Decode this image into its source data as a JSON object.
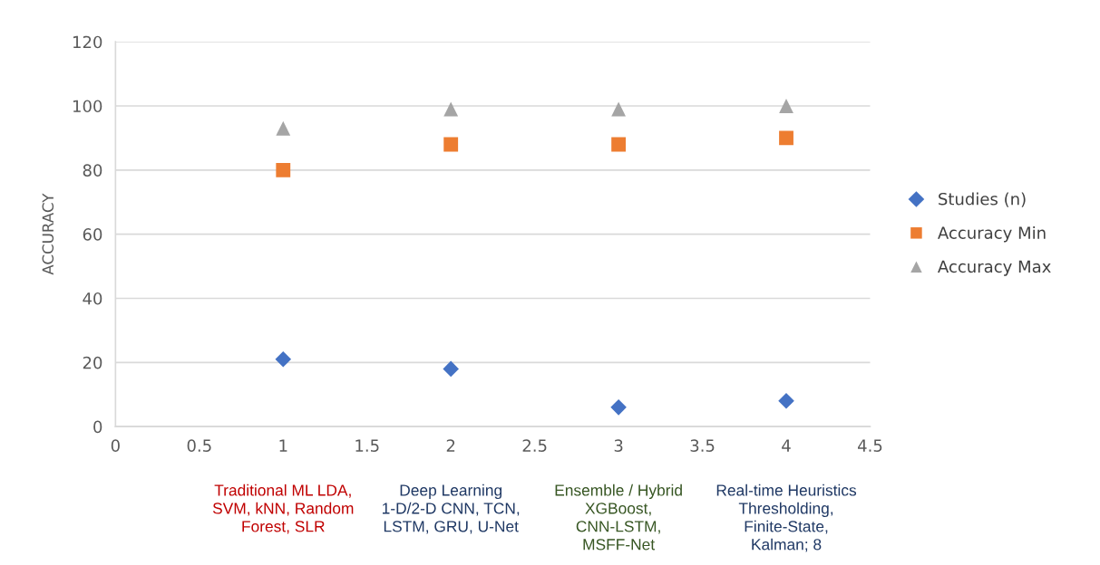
{
  "chart_data": {
    "type": "scatter",
    "ylabel": "ACCURACY",
    "x": [
      1,
      2,
      3,
      4
    ],
    "series": [
      {
        "name": "Studies (n)",
        "color": "#4472c4",
        "marker": "diamond",
        "values": [
          21,
          18,
          6,
          8
        ]
      },
      {
        "name": "Accuracy Min",
        "color": "#ed7d31",
        "marker": "square",
        "values": [
          80,
          88,
          88,
          90
        ]
      },
      {
        "name": "Accuracy Max",
        "color": "#a5a5a5",
        "marker": "triangle",
        "values": [
          93,
          99,
          99,
          100
        ]
      }
    ],
    "xlim": [
      0,
      4.5
    ],
    "xticks": [
      0,
      0.5,
      1,
      1.5,
      2,
      2.5,
      3,
      3.5,
      4,
      4.5
    ],
    "ylim": [
      0,
      120
    ],
    "yticks": [
      0,
      20,
      40,
      60,
      80,
      100,
      120
    ],
    "grid": "y",
    "legend": "right",
    "annotations": [
      "Traditional ML LDA, SVM, kNN, Random Forest, SLR",
      "Deep Learning 1-D/2-D CNN, TCN, LSTM, GRU, U-Net",
      "Ensemble / Hybrid XGBoost, CNN-LSTM, MSFF-Net",
      "Real-time Heuristics Thresholding, Finite-State, Kalman; 8"
    ]
  }
}
